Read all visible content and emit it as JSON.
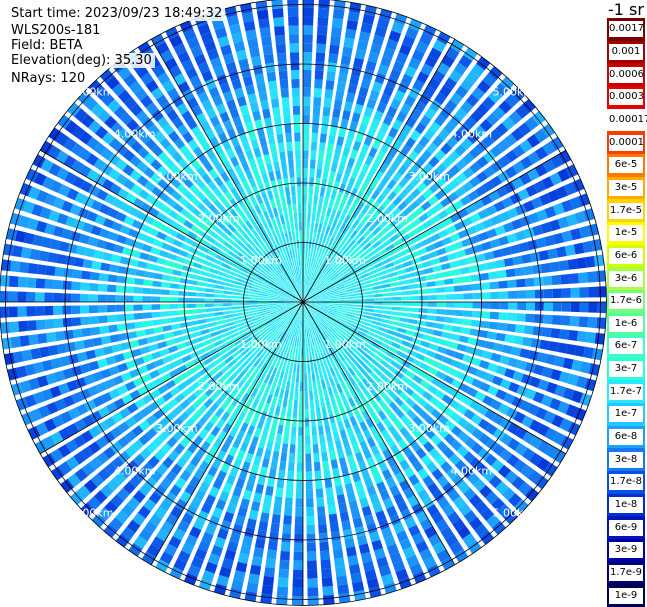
{
  "info": {
    "start_time": "Start time: 2023/09/23 18:49:32",
    "instrument": "WLS200s-181",
    "field": "Field: BETA",
    "elevation": "Elevation(deg): 35.30",
    "nrays": "NRays: 120"
  },
  "colorbar": {
    "unit": "-1 sr",
    "labels": [
      "0.0017",
      "0.001",
      "0.0006",
      "0.0003",
      "0.00017",
      "0.0001",
      "6e-5",
      "3e-5",
      "1.7e-5",
      "1e-5",
      "6e-6",
      "3e-6",
      "1.7e-6",
      "1e-6",
      "6e-7",
      "3e-7",
      "1.7e-7",
      "1e-7",
      "6e-8",
      "3e-8",
      "1.7e-8",
      "1e-8",
      "6e-9",
      "3e-9",
      "1.7e-9",
      "1e-9"
    ],
    "colors": [
      "#7a0000",
      "#a00000",
      "#c80000",
      "#e60000",
      "#ffffff",
      "#ff3c00",
      "#ff7800",
      "#ffaa00",
      "#ffd200",
      "#ffff00",
      "#d2ff00",
      "#aaff3c",
      "#78ff78",
      "#50ff9c",
      "#3cffc8",
      "#28ffd8",
      "#28eaff",
      "#22c8ff",
      "#1ea0ff",
      "#1478f0",
      "#0a50e6",
      "#0030d2",
      "#0014be",
      "#0000a0",
      "#000078",
      "#000050"
    ]
  },
  "chart_data": {
    "type": "polar-ppi",
    "field": "BETA",
    "elevation_deg": 35.3,
    "n_rays": 120,
    "range_rings_km": [
      1,
      2,
      3,
      4,
      5
    ],
    "range_labels": [
      "1.00km",
      "2.00km",
      "3.00km",
      "4.00km",
      "5.00km"
    ],
    "spoke_interval_deg": 30,
    "beta_by_range": [
      {
        "range_km": 0.5,
        "beta": 1.7e-07
      },
      {
        "range_km": 1.0,
        "beta": 1.7e-07
      },
      {
        "range_km": 2.0,
        "beta": 1.7e-07
      },
      {
        "range_km": 3.0,
        "beta": 1e-07
      },
      {
        "range_km": 4.0,
        "beta": 3e-08
      },
      {
        "range_km": 5.0,
        "beta": 1.7e-08
      }
    ]
  }
}
